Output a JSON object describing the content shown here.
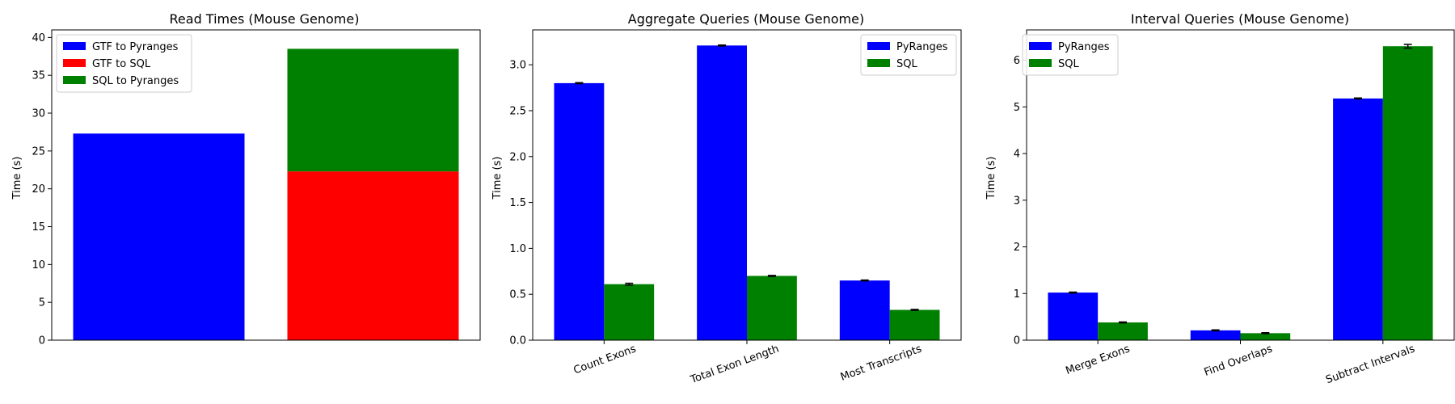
{
  "chart_data": [
    {
      "type": "bar",
      "title": "Read Times (Mouse Genome)",
      "xlabel": "",
      "ylabel": "Time (s)",
      "ylim": [
        0,
        41
      ],
      "yticks": [
        0,
        5,
        10,
        15,
        20,
        25,
        30,
        35,
        40
      ],
      "stacked": true,
      "categories": [
        "",
        ""
      ],
      "legend": "top-left",
      "series": [
        {
          "name": "GTF to Pyranges",
          "color": "#0000ff",
          "values": [
            27.3,
            0
          ]
        },
        {
          "name": "GTF to SQL",
          "color": "#ff0000",
          "values": [
            0,
            22.3
          ]
        },
        {
          "name": "SQL to Pyranges",
          "color": "#008000",
          "values": [
            0,
            16.2
          ]
        }
      ]
    },
    {
      "type": "bar",
      "title": "Aggregate Queries (Mouse Genome)",
      "xlabel": "",
      "ylabel": "Time (s)",
      "ylim": [
        0,
        3.38
      ],
      "yticks": [
        0.0,
        0.5,
        1.0,
        1.5,
        2.0,
        2.5,
        3.0
      ],
      "tick_decimals": 1,
      "categories": [
        "Count Exons",
        "Total Exon Length",
        "Most Transcripts"
      ],
      "legend": "top-right",
      "series": [
        {
          "name": "PyRanges",
          "color": "#0000ff",
          "values": [
            2.8,
            3.21,
            0.65
          ],
          "errors": [
            0.005,
            0.005,
            0.005
          ]
        },
        {
          "name": "SQL",
          "color": "#008000",
          "values": [
            0.61,
            0.7,
            0.33
          ],
          "errors": [
            0.01,
            0.005,
            0.005
          ]
        }
      ]
    },
    {
      "type": "bar",
      "title": "Interval Queries (Mouse Genome)",
      "xlabel": "",
      "ylabel": "Time (s)",
      "ylim": [
        0,
        6.65
      ],
      "yticks": [
        0,
        1,
        2,
        3,
        4,
        5,
        6
      ],
      "categories": [
        "Merge Exons",
        "Find Overlaps",
        "Subtract Intervals"
      ],
      "legend": "top-left",
      "series": [
        {
          "name": "PyRanges",
          "color": "#0000ff",
          "values": [
            1.02,
            0.21,
            5.18
          ],
          "errors": [
            0.01,
            0.01,
            0.01
          ]
        },
        {
          "name": "SQL",
          "color": "#008000",
          "values": [
            0.38,
            0.15,
            6.3
          ],
          "errors": [
            0.01,
            0.01,
            0.04
          ]
        }
      ]
    }
  ]
}
